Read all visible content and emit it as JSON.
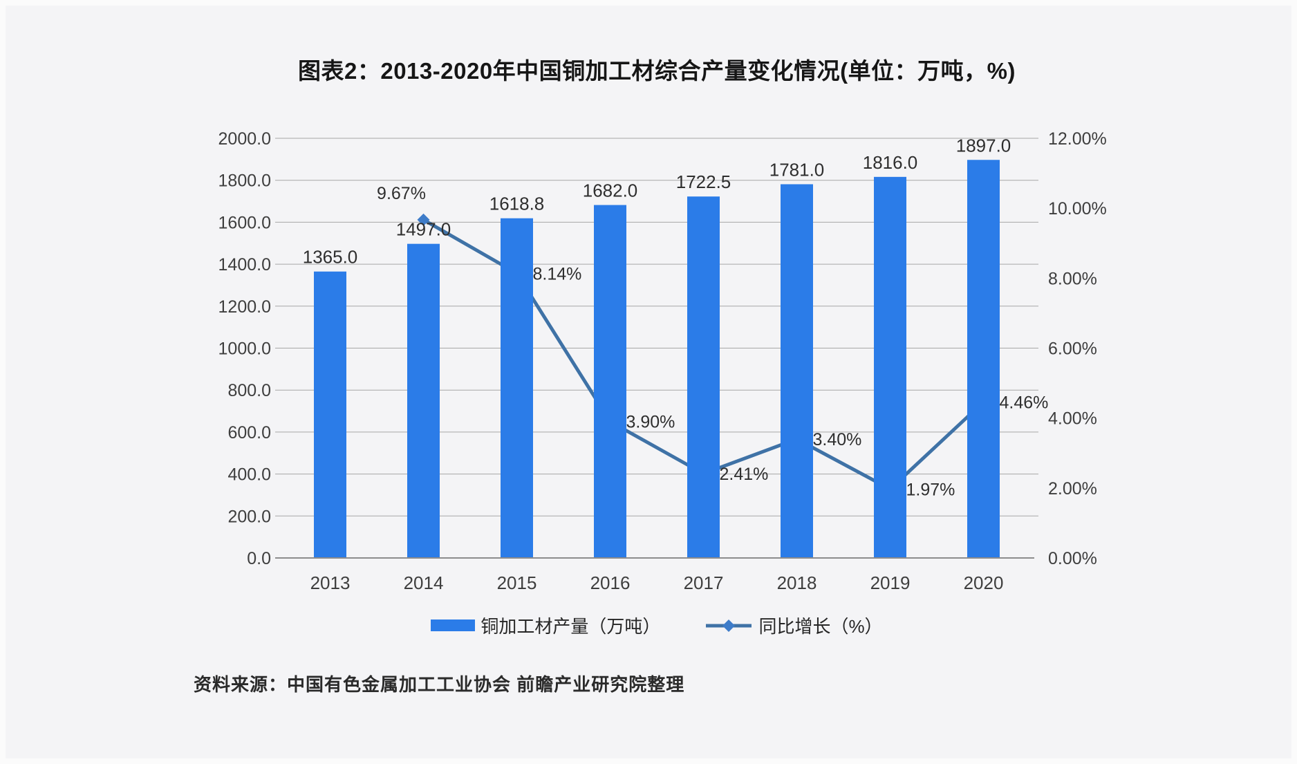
{
  "header": {
    "title": "图表2：2013-2020年中国铜加工材综合产量变化情况(单位：万吨，%)"
  },
  "footer": {
    "source": "资料来源：中国有色金属加工工业协会 前瞻产业研究院整理"
  },
  "legend": {
    "items": [
      {
        "label": "铜加工材产量（万吨）",
        "marker": "bar-swatch"
      },
      {
        "label": "同比增长（%）",
        "marker": "line-diamond"
      }
    ]
  },
  "colors": {
    "bar": "#2b7ce8",
    "line": "#3f72a6",
    "marker": "#3e7cc9",
    "grid": "#a6a6a6",
    "axis": "#8c8c8c",
    "tick_text": "#3e3e3e",
    "data_label": "#2e2e2e",
    "background": "#f4f4f6"
  },
  "chart_data": {
    "type": "bar+line combo",
    "title": "图表2：2013-2020年中国铜加工材综合产量变化情况(单位：万吨，%)",
    "categories": [
      "2013",
      "2014",
      "2015",
      "2016",
      "2017",
      "2018",
      "2019",
      "2020"
    ],
    "series": [
      {
        "name": "铜加工材产量（万吨）",
        "type": "bar",
        "axis": "left",
        "values": [
          1365.0,
          1497.0,
          1618.8,
          1682.0,
          1722.5,
          1781.0,
          1816.0,
          1897.0
        ],
        "labels": [
          "1365.0",
          "1497.0",
          "1618.8",
          "1682.0",
          "1722.5",
          "1781.0",
          "1816.0",
          "1897.0"
        ]
      },
      {
        "name": "同比增长（%）",
        "type": "line",
        "axis": "right",
        "values": [
          null,
          9.67,
          8.14,
          3.9,
          2.41,
          3.4,
          1.97,
          4.46
        ],
        "labels": [
          null,
          "9.67%",
          "8.14%",
          "3.90%",
          "2.41%",
          "3.40%",
          "1.97%",
          "4.46%"
        ]
      }
    ],
    "left_axis": {
      "min": 0,
      "max": 2000,
      "step": 200,
      "ticks": [
        {
          "v": 0,
          "label": "0.0"
        },
        {
          "v": 200,
          "label": "200.0"
        },
        {
          "v": 400,
          "label": "400.0"
        },
        {
          "v": 600,
          "label": "600.0"
        },
        {
          "v": 800,
          "label": "800.0"
        },
        {
          "v": 1000,
          "label": "1000.0"
        },
        {
          "v": 1200,
          "label": "1200.0"
        },
        {
          "v": 1400,
          "label": "1400.0"
        },
        {
          "v": 1600,
          "label": "1600.0"
        },
        {
          "v": 1800,
          "label": "1800.0"
        },
        {
          "v": 2000,
          "label": "2000.0"
        }
      ]
    },
    "right_axis": {
      "min": 0,
      "max": 12,
      "step": 2,
      "ticks": [
        {
          "v": 0,
          "label": "0.00%"
        },
        {
          "v": 2,
          "label": "2.00%"
        },
        {
          "v": 4,
          "label": "4.00%"
        },
        {
          "v": 6,
          "label": "6.00%"
        },
        {
          "v": 8,
          "label": "8.00%"
        },
        {
          "v": 10,
          "label": "10.00%"
        },
        {
          "v": 12,
          "label": "12.00%"
        }
      ]
    },
    "grid": true,
    "legend_position": "bottom"
  }
}
